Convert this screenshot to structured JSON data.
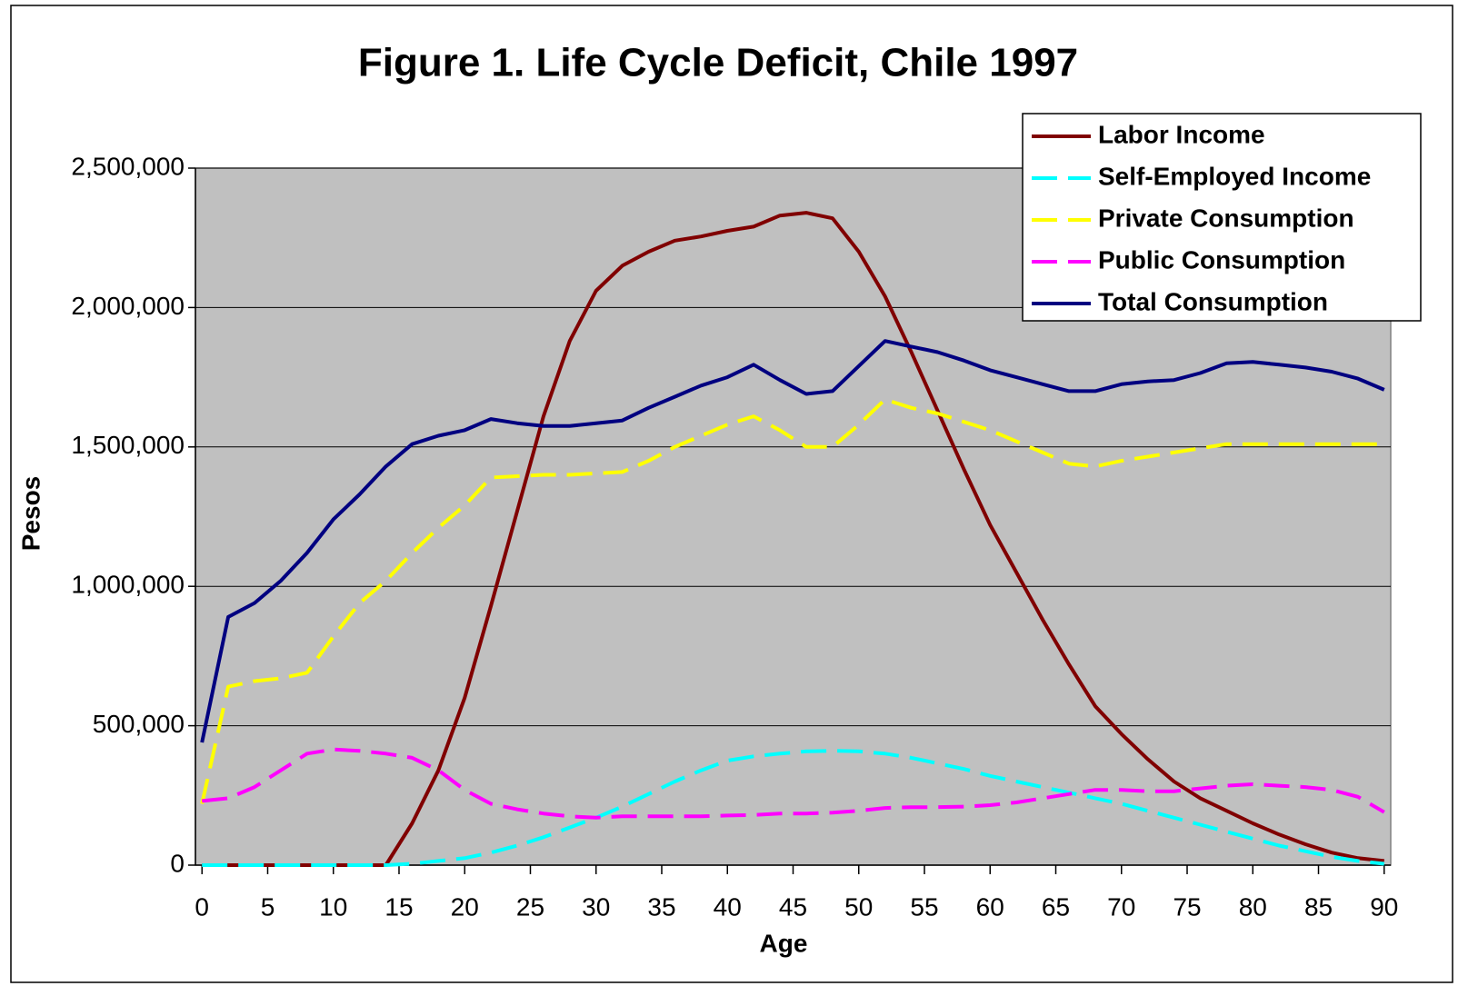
{
  "chart_data": {
    "type": "line",
    "title": "Figure 1. Life Cycle Deficit, Chile 1997",
    "x_label": "Age",
    "y_label": "Pesos",
    "x": [
      0,
      2,
      4,
      6,
      8,
      10,
      12,
      14,
      16,
      18,
      20,
      22,
      24,
      26,
      28,
      30,
      32,
      34,
      36,
      38,
      40,
      42,
      44,
      46,
      48,
      50,
      52,
      54,
      56,
      58,
      60,
      62,
      64,
      66,
      68,
      70,
      72,
      74,
      76,
      78,
      80,
      82,
      84,
      86,
      88,
      90
    ],
    "xlim": [
      -0.5,
      90.5
    ],
    "xticks": [
      0,
      5,
      10,
      15,
      20,
      25,
      30,
      35,
      40,
      45,
      50,
      55,
      60,
      65,
      70,
      75,
      80,
      85,
      90
    ],
    "ylim": [
      0,
      2500000
    ],
    "yticks": [
      0,
      {
        "value": 500000,
        "label": "500,000"
      },
      {
        "value": 1000000,
        "label": "1,000,000"
      },
      {
        "value": 1500000,
        "label": "1,500,000"
      },
      {
        "value": 2000000,
        "label": "2,000,000"
      },
      {
        "value": 2500000,
        "label": "2,500,000"
      }
    ],
    "grid": true,
    "legend": "upper right",
    "plot_background": "#c0c0c0",
    "series": [
      {
        "name": "Labor Income",
        "color": "#800000",
        "style": "solid",
        "values": [
          0,
          0,
          0,
          0,
          0,
          0,
          0,
          0,
          150000,
          340000,
          600000,
          930000,
          1270000,
          1610000,
          1880000,
          2060000,
          2150000,
          2200000,
          2240000,
          2255000,
          2275000,
          2290000,
          2330000,
          2340000,
          2320000,
          2200000,
          2040000,
          1840000,
          1630000,
          1420000,
          1220000,
          1050000,
          880000,
          720000,
          570000,
          470000,
          380000,
          300000,
          240000,
          195000,
          150000,
          110000,
          75000,
          45000,
          25000,
          15000
        ]
      },
      {
        "name": "Self-Employed Income",
        "color": "#00ffff",
        "style": "dashed",
        "values": [
          0,
          0,
          0,
          0,
          0,
          0,
          0,
          0,
          5000,
          15000,
          25000,
          45000,
          70000,
          100000,
          135000,
          170000,
          210000,
          255000,
          300000,
          340000,
          375000,
          390000,
          400000,
          408000,
          410000,
          408000,
          400000,
          385000,
          365000,
          345000,
          320000,
          300000,
          280000,
          260000,
          240000,
          220000,
          195000,
          170000,
          145000,
          120000,
          95000,
          70000,
          50000,
          30000,
          15000,
          5000
        ]
      },
      {
        "name": "Private Consumption",
        "color": "#ffff00",
        "style": "dashed",
        "values": [
          220000,
          640000,
          660000,
          670000,
          690000,
          820000,
          940000,
          1020000,
          1120000,
          1210000,
          1290000,
          1390000,
          1395000,
          1400000,
          1400000,
          1405000,
          1410000,
          1450000,
          1500000,
          1540000,
          1580000,
          1610000,
          1560000,
          1500000,
          1500000,
          1580000,
          1670000,
          1640000,
          1620000,
          1590000,
          1560000,
          1520000,
          1480000,
          1440000,
          1430000,
          1450000,
          1465000,
          1480000,
          1495000,
          1510000,
          1510000,
          1510000,
          1510000,
          1510000,
          1510000,
          1510000
        ]
      },
      {
        "name": "Public Consumption",
        "color": "#ff00ff",
        "style": "dashed",
        "values": [
          230000,
          240000,
          280000,
          340000,
          400000,
          415000,
          410000,
          400000,
          385000,
          340000,
          270000,
          220000,
          200000,
          185000,
          175000,
          170000,
          175000,
          175000,
          175000,
          175000,
          178000,
          180000,
          185000,
          185000,
          188000,
          195000,
          205000,
          208000,
          208000,
          210000,
          215000,
          225000,
          240000,
          255000,
          270000,
          270000,
          265000,
          265000,
          275000,
          285000,
          290000,
          285000,
          280000,
          270000,
          245000,
          190000
        ]
      },
      {
        "name": "Total Consumption",
        "color": "#000080",
        "style": "solid",
        "values": [
          440000,
          890000,
          940000,
          1020000,
          1120000,
          1240000,
          1330000,
          1430000,
          1510000,
          1540000,
          1560000,
          1600000,
          1585000,
          1575000,
          1575000,
          1585000,
          1595000,
          1640000,
          1680000,
          1720000,
          1750000,
          1795000,
          1740000,
          1690000,
          1700000,
          1790000,
          1880000,
          1860000,
          1840000,
          1810000,
          1775000,
          1750000,
          1725000,
          1700000,
          1700000,
          1725000,
          1735000,
          1740000,
          1765000,
          1800000,
          1805000,
          1795000,
          1785000,
          1770000,
          1745000,
          1705000
        ]
      }
    ]
  }
}
